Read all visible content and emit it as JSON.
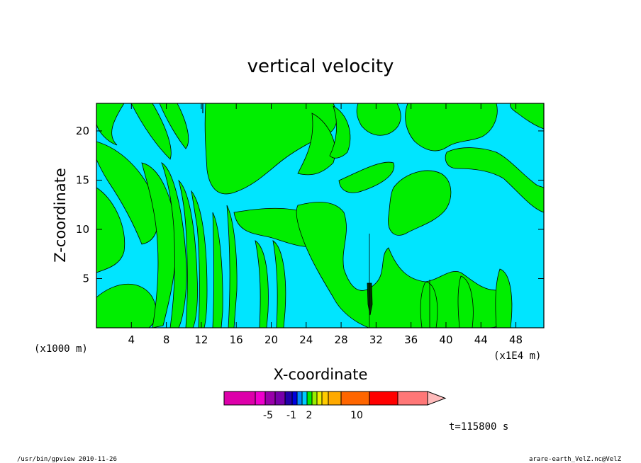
{
  "chart_data": {
    "type": "heatmap",
    "title": "vertical velocity",
    "xlabel": "X-coordinate",
    "ylabel": "Z-coordinate",
    "x_unit_left": "(x1000 m)",
    "x_unit_right": "(x1E4 m)",
    "x_ticks": [
      4,
      8,
      12,
      16,
      20,
      24,
      28,
      32,
      36,
      40,
      44,
      48
    ],
    "y_ticks": [
      5,
      10,
      15,
      20
    ],
    "xlim": [
      0,
      51.2
    ],
    "ylim": [
      0,
      22.8
    ],
    "colors": {
      "negative_region": "#00e5ff",
      "positive_region": "#00ee00",
      "contour_line": "#000000"
    },
    "colorbar": {
      "bins": [
        "#dd00aa",
        "#ee00cc",
        "#9900aa",
        "#7700aa",
        "#2200aa",
        "#0000dd",
        "#0088ff",
        "#00ccff",
        "#00ee00",
        "#99ee00",
        "#eeee00",
        "#ffcc00",
        "#ffaa00",
        "#ff6600",
        "#ff0000",
        "#ff7777",
        "#ffbbbb"
      ],
      "tick_labels": [
        "-5",
        "-1",
        "2",
        "10"
      ]
    },
    "time_label": "t=115800 s"
  },
  "footer": {
    "left": "/usr/bin/gpview   2010-11-26",
    "right": "arare-earth_VelZ.nc@VelZ"
  }
}
